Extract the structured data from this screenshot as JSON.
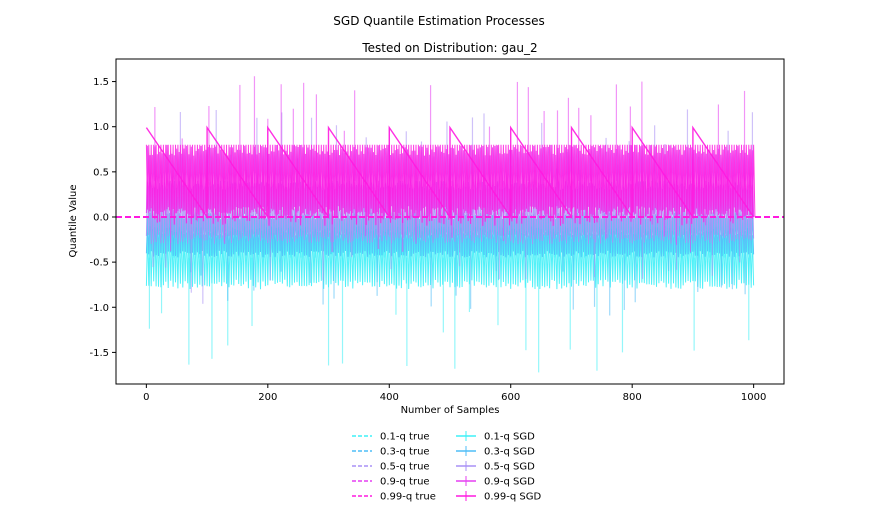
{
  "chart_data": {
    "type": "line",
    "suptitle": "SGD Quantile Estimation Processes",
    "title": "Tested on Distribution: gau_2",
    "xlabel": "Number of Samples",
    "ylabel": "Quantile Value",
    "xlim": [
      -50,
      1050
    ],
    "ylim": [
      -1.85,
      1.75
    ],
    "xticks": [
      0,
      200,
      400,
      600,
      800,
      1000
    ],
    "yticks": [
      -1.5,
      -1.0,
      -0.5,
      0.0,
      0.5,
      1.0,
      1.5
    ],
    "xtick_labels": [
      "0",
      "200",
      "400",
      "600",
      "800",
      "1000"
    ],
    "ytick_labels": [
      "-1.5",
      "-1.0",
      "-0.5",
      "0.0",
      "0.5",
      "1.0",
      "1.5"
    ],
    "grid": false,
    "legend_position": "bottom-center",
    "series": [
      {
        "name": "0.1-q true",
        "kind": "true",
        "color": "#3ef0f7",
        "value": 0.0
      },
      {
        "name": "0.3-q true",
        "kind": "true",
        "color": "#4fbdf7",
        "value": 0.0
      },
      {
        "name": "0.5-q true",
        "kind": "true",
        "color": "#a890f5",
        "value": 0.0
      },
      {
        "name": "0.9-q true",
        "kind": "true",
        "color": "#e63ff2",
        "value": 0.0
      },
      {
        "name": "0.99-q true",
        "kind": "true",
        "color": "#ff1ae0",
        "value": 0.0
      },
      {
        "name": "0.1-q SGD",
        "kind": "sgd",
        "color": "#3ef0f7",
        "center": -0.45,
        "amp": 0.35,
        "outlier_low": -1.73,
        "outlier_high": 0.25
      },
      {
        "name": "0.3-q SGD",
        "kind": "sgd",
        "color": "#4fbdf7",
        "center": -0.2,
        "amp": 0.25,
        "outlier_low": -1.15,
        "outlier_high": 0.3
      },
      {
        "name": "0.5-q SGD",
        "kind": "sgd",
        "color": "#a890f5",
        "center": 0.05,
        "amp": 0.35,
        "outlier_low": -1.0,
        "outlier_high": 1.2
      },
      {
        "name": "0.9-q SGD",
        "kind": "sgd",
        "color": "#e63ff2",
        "center": 0.4,
        "amp": 0.4,
        "outlier_low": -0.4,
        "outlier_high": 1.57
      },
      {
        "name": "0.99-q SGD",
        "kind": "sgd",
        "color": "#ff1ae0",
        "sawtooth_start": 0.99,
        "sawtooth_end": 0.0,
        "period": 100
      }
    ]
  }
}
